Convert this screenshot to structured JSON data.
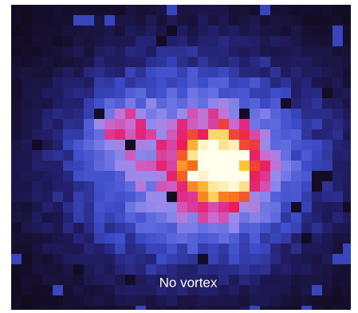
{
  "caption": "No vortex"
}
